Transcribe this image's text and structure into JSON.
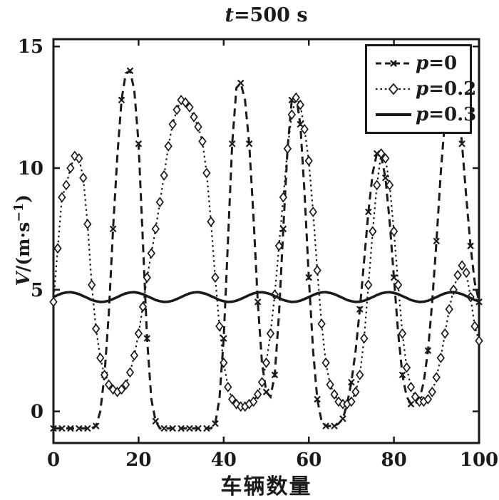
{
  "chart_data": {
    "type": "line",
    "title": {
      "var": "t",
      "rest": "=500 s"
    },
    "xlabel": "车辆数量",
    "ylabel": {
      "var": "V",
      "mid": "/(m·s",
      "sup": "−1",
      "end": ")"
    },
    "xlim": [
      0,
      100
    ],
    "ylim": [
      -1.3,
      15.3
    ],
    "xticks": [
      0,
      20,
      40,
      60,
      80,
      100
    ],
    "yticks": [
      0,
      5,
      10,
      15
    ],
    "grid": false,
    "legend_position": "top-right",
    "color": "#1a1a1a",
    "x": [
      0,
      1,
      2,
      3,
      4,
      5,
      6,
      7,
      8,
      9,
      10,
      11,
      12,
      13,
      14,
      15,
      16,
      17,
      18,
      19,
      20,
      21,
      22,
      23,
      24,
      25,
      26,
      27,
      28,
      29,
      30,
      31,
      32,
      33,
      34,
      35,
      36,
      37,
      38,
      39,
      40,
      41,
      42,
      43,
      44,
      45,
      46,
      47,
      48,
      49,
      50,
      51,
      52,
      53,
      54,
      55,
      56,
      57,
      58,
      59,
      60,
      61,
      62,
      63,
      64,
      65,
      66,
      67,
      68,
      69,
      70,
      71,
      72,
      73,
      74,
      75,
      76,
      77,
      78,
      79,
      80,
      81,
      82,
      83,
      84,
      85,
      86,
      87,
      88,
      89,
      90,
      91,
      92,
      93,
      94,
      95,
      96,
      97,
      98,
      99,
      100
    ],
    "series": [
      {
        "name": "p=0",
        "label_var": "p",
        "label_rest": "=0",
        "style": "dashed",
        "marker": "x",
        "values": [
          -0.7,
          -0.7,
          -0.7,
          -0.7,
          -0.7,
          -0.7,
          -0.7,
          -0.7,
          -0.7,
          -0.7,
          -0.6,
          0.0,
          1.5,
          4.0,
          7.5,
          10.5,
          12.8,
          13.9,
          14.0,
          13.2,
          11.0,
          7.0,
          3.0,
          0.5,
          -0.4,
          -0.7,
          -0.7,
          -0.7,
          -0.7,
          -0.7,
          -0.7,
          -0.7,
          -0.7,
          -0.7,
          -0.7,
          -0.7,
          -0.7,
          -0.7,
          -0.5,
          0.5,
          3.0,
          7.0,
          11.0,
          13.3,
          13.5,
          12.8,
          11.0,
          8.0,
          4.5,
          2.0,
          0.8,
          0.6,
          1.5,
          4.0,
          7.5,
          10.8,
          12.8,
          13.0,
          11.8,
          9.0,
          5.5,
          2.5,
          0.5,
          -0.4,
          -0.6,
          -0.6,
          -0.6,
          -0.5,
          -0.3,
          0.3,
          1.2,
          2.5,
          4.2,
          6.2,
          8.2,
          9.8,
          10.6,
          10.5,
          9.6,
          7.8,
          5.5,
          3.2,
          1.5,
          0.6,
          0.3,
          0.3,
          0.5,
          1.2,
          2.5,
          4.5,
          7.0,
          9.8,
          12.0,
          13.4,
          13.6,
          12.8,
          11.0,
          8.8,
          6.8,
          5.3,
          4.5
        ]
      },
      {
        "name": "p=0.2",
        "label_var": "p",
        "label_rest": "=0.2",
        "style": "dotted",
        "marker": "diamond",
        "values": [
          4.5,
          6.7,
          8.8,
          9.3,
          10.0,
          10.5,
          10.4,
          9.6,
          7.7,
          5.2,
          3.4,
          2.2,
          1.5,
          1.1,
          0.9,
          0.8,
          0.9,
          1.1,
          1.6,
          2.3,
          3.2,
          4.3,
          5.5,
          6.5,
          7.5,
          8.6,
          9.7,
          10.9,
          11.8,
          12.4,
          12.8,
          12.7,
          12.5,
          12.1,
          11.7,
          11.1,
          9.8,
          7.8,
          5.5,
          3.5,
          2.0,
          1.0,
          0.5,
          0.3,
          0.2,
          0.2,
          0.3,
          0.4,
          0.7,
          1.2,
          2.0,
          3.2,
          4.8,
          6.8,
          8.8,
          10.8,
          12.2,
          12.9,
          12.6,
          11.6,
          10.3,
          8.2,
          5.8,
          3.6,
          2.0,
          1.1,
          0.7,
          0.4,
          0.3,
          0.3,
          0.4,
          0.8,
          1.5,
          3.0,
          5.2,
          7.4,
          9.3,
          10.6,
          10.4,
          9.3,
          7.4,
          5.2,
          3.2,
          1.8,
          1.0,
          0.6,
          0.4,
          0.4,
          0.5,
          0.8,
          1.4,
          2.2,
          3.2,
          4.2,
          5.0,
          5.6,
          6.0,
          5.7,
          4.7,
          3.5,
          2.9
        ]
      },
      {
        "name": "p=0.3",
        "label_var": "p",
        "label_rest": "=0.3",
        "style": "solid",
        "marker": "none",
        "values": [
          4.7,
          4.78,
          4.85,
          4.89,
          4.9,
          4.87,
          4.82,
          4.74,
          4.66,
          4.58,
          4.53,
          4.5,
          4.51,
          4.55,
          4.62,
          4.7,
          4.78,
          4.85,
          4.89,
          4.9,
          4.87,
          4.82,
          4.74,
          4.66,
          4.58,
          4.53,
          4.5,
          4.51,
          4.55,
          4.62,
          4.7,
          4.78,
          4.85,
          4.89,
          4.9,
          4.87,
          4.82,
          4.74,
          4.66,
          4.58,
          4.53,
          4.5,
          4.51,
          4.55,
          4.62,
          4.7,
          4.78,
          4.85,
          4.89,
          4.9,
          4.87,
          4.82,
          4.74,
          4.66,
          4.58,
          4.53,
          4.5,
          4.51,
          4.55,
          4.62,
          4.7,
          4.78,
          4.85,
          4.89,
          4.9,
          4.87,
          4.82,
          4.74,
          4.66,
          4.58,
          4.53,
          4.5,
          4.51,
          4.55,
          4.62,
          4.7,
          4.78,
          4.85,
          4.89,
          4.9,
          4.87,
          4.82,
          4.74,
          4.66,
          4.58,
          4.53,
          4.5,
          4.51,
          4.55,
          4.62,
          4.7,
          4.78,
          4.85,
          4.89,
          4.9,
          4.87,
          4.82,
          4.74,
          4.66,
          4.58,
          4.53
        ]
      }
    ]
  }
}
